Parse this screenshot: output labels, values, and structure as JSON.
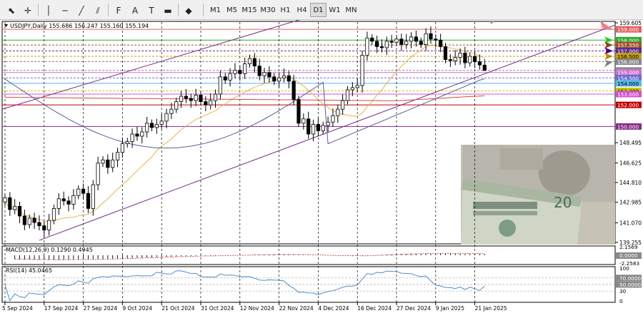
{
  "toolbar": {
    "timeframes": [
      "M1",
      "M5",
      "M15",
      "M30",
      "H1",
      "H4",
      "D1",
      "W1",
      "MN"
    ],
    "active_timeframe": "D1",
    "tools": [
      {
        "name": "cursor-icon",
        "glyph": "⬉"
      },
      {
        "name": "crosshair-icon",
        "glyph": "✛"
      },
      {
        "name": "vertical-line-icon",
        "glyph": "│"
      },
      {
        "name": "horizontal-line-icon",
        "glyph": "─"
      },
      {
        "name": "trendline-icon",
        "glyph": "╱"
      },
      {
        "name": "channel-icon",
        "glyph": "⫽"
      },
      {
        "name": "fibonacci-icon",
        "glyph": "𝖥"
      },
      {
        "name": "text-icon",
        "glyph": "A"
      },
      {
        "name": "label-icon",
        "glyph": "T"
      },
      {
        "name": "rectangle-icon",
        "glyph": "▬"
      },
      {
        "name": "shapes-icon",
        "glyph": "◆"
      }
    ]
  },
  "chart_data": {
    "type": "candlestick",
    "title": "USDJPY,Daily  155.686 156.247 155.160 155.194",
    "symbol": "USDJPY",
    "timeframe": "Daily",
    "ohlc_last": {
      "open": 155.686,
      "high": 156.247,
      "low": 155.16,
      "close": 155.194
    },
    "ylim": [
      139.255,
      159.605
    ],
    "price_ticks": [
      "159.605",
      "148.495",
      "146.625",
      "144.810",
      "142.985",
      "141.070",
      "139.255"
    ],
    "x_ticks": [
      "5 Sep 2024",
      "17 Sep 2024",
      "27 Sep 2024",
      "9 Oct 2024",
      "21 Oct 2024",
      "31 Oct 2024",
      "12 Nov 2024",
      "22 Nov 2024",
      "4 Dec 2024",
      "16 Dec 2024",
      "27 Dec 2024",
      "9 Jan 2025",
      "21 Jan 2025"
    ],
    "x_tick_index": [
      0,
      8,
      16,
      24,
      32,
      40,
      48,
      56,
      64,
      72,
      80,
      88,
      96
    ],
    "closes": [
      143.4,
      142.3,
      142.6,
      141.7,
      140.9,
      141.5,
      141.1,
      140.8,
      140.4,
      141.3,
      142.4,
      143.3,
      143.1,
      142.8,
      143.6,
      144.2,
      143.8,
      142.4,
      144.6,
      146.6,
      146.9,
      146.2,
      146.9,
      147.6,
      148.4,
      148.6,
      149.3,
      149.1,
      149.5,
      150.3,
      149.9,
      150.2,
      150.5,
      151.2,
      151.6,
      152.3,
      152.8,
      152.6,
      152.4,
      152.9,
      152.3,
      152.0,
      152.4,
      153.0,
      154.6,
      154.3,
      154.9,
      155.2,
      154.9,
      155.8,
      156.3,
      155.6,
      154.7,
      155.0,
      154.6,
      154.2,
      154.5,
      154.7,
      154.2,
      152.5,
      150.3,
      150.7,
      149.3,
      150.2,
      149.6,
      150.1,
      150.4,
      151.0,
      151.6,
      152.4,
      153.4,
      153.6,
      153.8,
      156.6,
      158.2,
      157.9,
      157.4,
      157.3,
      157.9,
      157.8,
      158.1,
      157.6,
      157.9,
      158.3,
      157.9,
      157.6,
      158.6,
      158.1,
      158.0,
      157.4,
      156.2,
      156.1,
      156.4,
      156.8,
      155.9,
      156.5,
      156.0,
      155.7,
      155.19
    ],
    "overlays": [
      {
        "name": "ma-short",
        "color": "#e8b44a"
      },
      {
        "name": "ma-mid",
        "color": "#d24b4b"
      },
      {
        "name": "ma-long",
        "color": "#5a5a9a"
      }
    ],
    "levels": [
      {
        "label": "159.000",
        "value": 159.0,
        "color": "#e06060"
      },
      {
        "label": "158.000",
        "value": 158.0,
        "color": "#2eaa2e"
      },
      {
        "label": "157.550",
        "value": 157.55,
        "color": "#a0522d"
      },
      {
        "label": "157.000",
        "value": 157.0,
        "color": "#5e2a8a"
      },
      {
        "label": "156.500",
        "value": 156.5,
        "color": "#c8a000"
      },
      {
        "label": "156.000",
        "value": 156.0,
        "color": "#888888"
      },
      {
        "label": "155.194",
        "value": 155.194,
        "color": "#8a8a8a"
      },
      {
        "label": "155.000",
        "value": 155.0,
        "color": "#d070d0"
      },
      {
        "label": "154.500",
        "value": 154.5,
        "color": "#6a6ad0"
      },
      {
        "label": "154.000",
        "value": 154.0,
        "color": "#58b8e8"
      },
      {
        "label": "153.300",
        "value": 153.3,
        "color": "#c8c800"
      },
      {
        "label": "153.000",
        "value": 153.0,
        "color": "#d050d0"
      },
      {
        "label": "152.000",
        "value": 152.0,
        "color": "#c00000"
      },
      {
        "label": "150.000",
        "value": 150.0,
        "color": "#8a2a8a"
      }
    ],
    "macd": {
      "label": "MACD(12,26,9) 0.1290 0.4945",
      "ticks": [
        "2.1569",
        "0.0000",
        "-2.2583"
      ]
    },
    "rsi": {
      "label": "RSI(14) 45.0465",
      "ticks": [
        "100",
        "70",
        "50",
        "30",
        "0"
      ],
      "value": 45.0465
    }
  },
  "colors": {
    "candle": "#000000",
    "channel": "#7a2a8a",
    "grid": "#000000"
  }
}
